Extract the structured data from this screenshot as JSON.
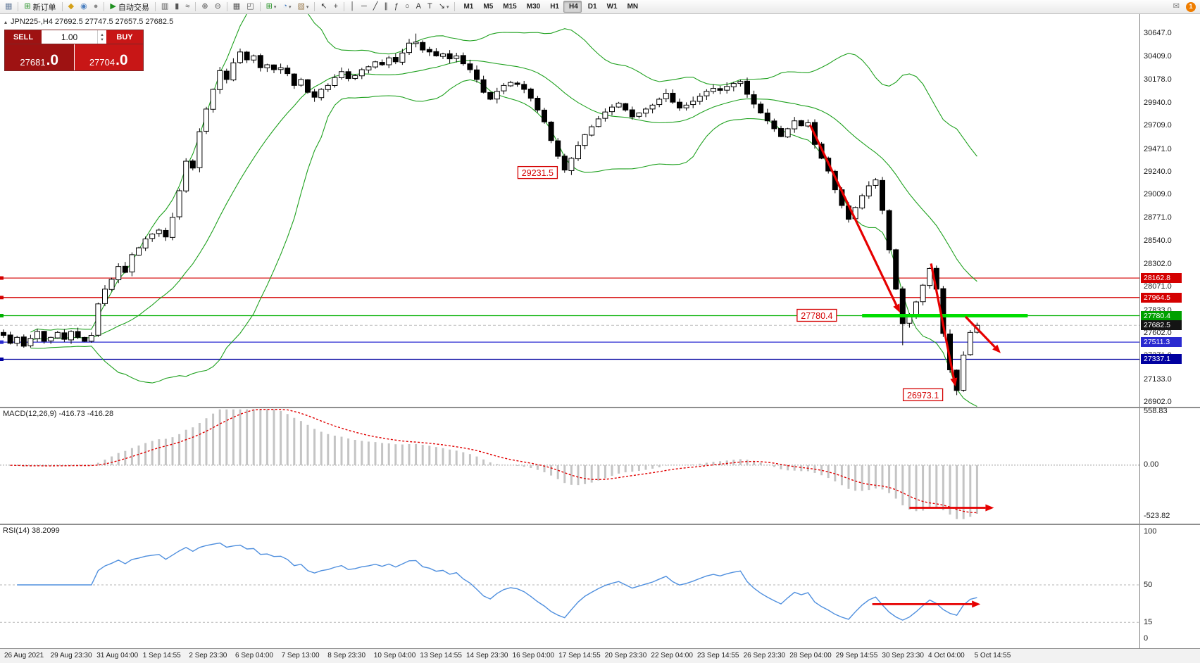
{
  "toolbar": {
    "groups": [
      {
        "items": [
          {
            "name": "chart-window-icon",
            "glyph": "▦",
            "color": "#6a7f9e"
          }
        ]
      },
      {
        "items": [
          {
            "name": "new-order-button",
            "glyph": "⊞",
            "color": "#1e8f1e",
            "label": "新订单"
          }
        ]
      },
      {
        "items": [
          {
            "name": "history-center-icon",
            "glyph": "◆",
            "color": "#d4a017"
          },
          {
            "name": "global-view-icon",
            "glyph": "◉",
            "color": "#4a7fc0"
          },
          {
            "name": "news-icon",
            "glyph": "●",
            "color": "#8a8a8a"
          }
        ]
      },
      {
        "items": [
          {
            "name": "autotrading-button",
            "glyph": "▶",
            "color": "#1e8f1e",
            "label": "自动交易"
          }
        ]
      },
      {
        "items": [
          {
            "name": "bar-chart-type-icon",
            "glyph": "▥",
            "color": "#555555"
          },
          {
            "name": "candlestick-chart-type-icon",
            "glyph": "▮",
            "color": "#555555"
          },
          {
            "name": "line-chart-type-icon",
            "glyph": "≈",
            "color": "#555555"
          }
        ]
      },
      {
        "items": [
          {
            "name": "zoom-in-icon",
            "glyph": "⊕",
            "color": "#555555"
          },
          {
            "name": "zoom-out-icon",
            "glyph": "⊖",
            "color": "#555555"
          }
        ]
      },
      {
        "items": [
          {
            "name": "tile-windows-icon",
            "glyph": "▦",
            "color": "#555555"
          },
          {
            "name": "auto-arrange-icon",
            "glyph": "◰",
            "color": "#555555"
          }
        ]
      },
      {
        "items": [
          {
            "name": "indicators-button",
            "glyph": "⊞",
            "color": "#1e8f1e",
            "dropdown": true
          },
          {
            "name": "periods-button",
            "glyph": "◔",
            "color": "#4a7fc0",
            "dropdown": true
          },
          {
            "name": "templates-button",
            "glyph": "▧",
            "color": "#9a7b4f",
            "dropdown": true
          }
        ]
      },
      {
        "items": [
          {
            "name": "cursor-icon",
            "glyph": "↖",
            "color": "#333333"
          },
          {
            "name": "crosshair-icon",
            "glyph": "+",
            "color": "#333333"
          }
        ]
      },
      {
        "items": [
          {
            "name": "vertical-line-icon",
            "glyph": "│",
            "color": "#333333"
          },
          {
            "name": "horizontal-line-icon",
            "glyph": "─",
            "color": "#333333"
          },
          {
            "name": "trendline-icon",
            "glyph": "╱",
            "color": "#333333"
          },
          {
            "name": "equidistant-channel-icon",
            "glyph": "∥",
            "color": "#333333"
          },
          {
            "name": "fibonacci-icon",
            "glyph": "ƒ",
            "color": "#333333"
          },
          {
            "name": "shapes-icon",
            "glyph": "○",
            "color": "#333333"
          },
          {
            "name": "text-icon",
            "glyph": "A",
            "color": "#333333"
          },
          {
            "name": "label-icon",
            "glyph": "T",
            "color": "#333333"
          },
          {
            "name": "arrows-tool-icon",
            "glyph": "↘",
            "color": "#333333",
            "dropdown": true
          }
        ]
      },
      {
        "items": [
          {
            "name": "timeframe-m1-button",
            "label": "M1",
            "cls": "tf"
          },
          {
            "name": "timeframe-m5-button",
            "label": "M5",
            "cls": "tf"
          },
          {
            "name": "timeframe-m15-button",
            "label": "M15",
            "cls": "tf"
          },
          {
            "name": "timeframe-m30-button",
            "label": "M30",
            "cls": "tf"
          },
          {
            "name": "timeframe-h1-button",
            "label": "H1",
            "cls": "tf"
          },
          {
            "name": "timeframe-h4-button",
            "label": "H4",
            "cls": "tf",
            "active": true
          },
          {
            "name": "timeframe-d1-button",
            "label": "D1",
            "cls": "tf"
          },
          {
            "name": "timeframe-w1-button",
            "label": "W1",
            "cls": "tf"
          },
          {
            "name": "timeframe-mn-button",
            "label": "MN",
            "cls": "tf"
          }
        ]
      }
    ],
    "right": [
      {
        "name": "messages-icon",
        "glyph": "✉",
        "color": "#777777"
      },
      {
        "name": "notifications-badge",
        "label": "1",
        "badge": true
      }
    ]
  },
  "symbol_header": {
    "icon": "▴",
    "text": "JPN225-,H4  27692.5 27747.5 27657.5 27682.5"
  },
  "trade_panel": {
    "sell_label": "SELL",
    "buy_label": "BUY",
    "volume": "1.00",
    "sell_price_main": "27681",
    "sell_price_frac": ".0",
    "buy_price_main": "27704",
    "buy_price_frac": ".0",
    "spin_up": "▴",
    "spin_down": "▾"
  },
  "chart_data": {
    "type": "candlestick",
    "symbol": "JPN225-",
    "timeframe": "H4",
    "title_ohlc": {
      "open": 27692.5,
      "high": 27747.5,
      "low": 27657.5,
      "close": 27682.5
    },
    "seed": 42,
    "closes": [
      27580,
      27500,
      27560,
      27470,
      27550,
      27620,
      27520,
      27560,
      27610,
      27540,
      27620,
      27560,
      27520,
      27580,
      27900,
      28050,
      28150,
      28280,
      28220,
      28400,
      28470,
      28560,
      28610,
      28650,
      28580,
      28780,
      29050,
      29350,
      29280,
      29650,
      29880,
      30080,
      30270,
      30180,
      30350,
      30460,
      30380,
      30420,
      30300,
      30330,
      30280,
      30300,
      30240,
      30120,
      30180,
      30050,
      30000,
      30080,
      30120,
      30200,
      30260,
      30190,
      30220,
      30280,
      30310,
      30360,
      30330,
      30400,
      30360,
      30450,
      30550,
      30560,
      30480,
      30460,
      30420,
      30440,
      30390,
      30420,
      30340,
      30280,
      30180,
      30050,
      29980,
      30060,
      30120,
      30150,
      30130,
      30080,
      29990,
      29870,
      29750,
      29560,
      29400,
      29260,
      29380,
      29510,
      29620,
      29700,
      29780,
      29850,
      29900,
      29940,
      29870,
      29800,
      29840,
      29880,
      29920,
      29980,
      30040,
      29950,
      29890,
      29920,
      29960,
      30010,
      30060,
      30090,
      30070,
      30110,
      30140,
      30160,
      30030,
      29930,
      29840,
      29760,
      29680,
      29600,
      29680,
      29760,
      29710,
      29740,
      29520,
      29380,
      29250,
      29060,
      28900,
      28760,
      28880,
      29000,
      29100,
      29160,
      28850,
      28450,
      28050,
      27700,
      27780,
      27920,
      28090,
      28260,
      28050,
      27600,
      27230,
      27020,
      27380,
      27610,
      27682.5
    ],
    "wick_overrides": {
      "61": {
        "high": 30647
      },
      "83": {
        "low": 29231.5
      },
      "133": {
        "low": 27480
      },
      "141": {
        "low": 26973.1
      }
    },
    "price_axis": {
      "min": 26840,
      "max": 30845,
      "labels": [
        30647.0,
        30409.0,
        30178.0,
        29940.0,
        29709.0,
        29471.0,
        29240.0,
        29009.0,
        28771.0,
        28540.0,
        28302.0,
        28071.0,
        27833.0,
        27602.0,
        27371.0,
        27133.0,
        26902.0
      ]
    },
    "hlines": [
      {
        "price": 28162.8,
        "color": "#d40000",
        "tag": "28162.8",
        "tag_bg": "#d40000"
      },
      {
        "price": 27964.5,
        "color": "#d40000",
        "tag": "27964.5",
        "tag_bg": "#d40000"
      },
      {
        "price": 27780.4,
        "color": "#00b000",
        "tag": "27780.4",
        "tag_bg": "#00a000"
      },
      {
        "price": 27511.3,
        "color": "#2a2ad0",
        "tag": "27511.3",
        "tag_bg": "#2a2ad0"
      },
      {
        "price": 27337.1,
        "color": "#0000a0",
        "tag": "27337.1",
        "tag_bg": "#0000a0"
      }
    ],
    "current_price": {
      "value": 27682.5,
      "tag": "27682.5",
      "tag_bg": "#141414"
    },
    "thick_line": {
      "price": 27780.4,
      "from_bar": 127,
      "to_bar": 151.5,
      "color": "#00dd00"
    },
    "price_labels": [
      {
        "text": "29231.5",
        "bar": 79,
        "price": 29231.5
      },
      {
        "text": "27780.4",
        "bar": 120.3,
        "price": 27780.4
      },
      {
        "text": "26973.1",
        "bar": 136,
        "price": 26973.1
      }
    ],
    "arrows": [
      {
        "from": [
          119.3,
          29720
        ],
        "to": [
          132.6,
          27810
        ]
      },
      {
        "from": [
          137.2,
          28310
        ],
        "to": [
          140.8,
          27060
        ]
      },
      {
        "from": [
          142.3,
          27770
        ],
        "to": [
          147.5,
          27400
        ]
      }
    ],
    "bollinger": {
      "period": 20,
      "deviation": 2,
      "color": "#1fa11f"
    },
    "macd": {
      "label": "MACD(12,26,9) -416.73 -416.28",
      "axis_labels": [
        {
          "v": 558.83,
          "t": "558.83"
        },
        {
          "v": 0,
          "t": "0.00"
        },
        {
          "v": -523.82,
          "t": "-523.82"
        }
      ],
      "hist_color": "#c4c4c4",
      "signal_color": "#e00000",
      "arrow": {
        "from_bar": 134,
        "to_bar": 146.5,
        "value": -440
      }
    },
    "rsi": {
      "label": "RSI(14) 38.2099",
      "period": 14,
      "axis_labels": [
        {
          "v": 100,
          "t": "100"
        },
        {
          "v": 50,
          "t": "50"
        },
        {
          "v": 15,
          "t": "15"
        },
        {
          "v": 0,
          "t": "0"
        }
      ],
      "levels": [
        50,
        15
      ],
      "color": "#4f8fde",
      "arrow": {
        "from_bar": 128.5,
        "to_bar": 144.5,
        "value": 32
      }
    },
    "time_axis": [
      "26 Aug 2021",
      "29 Aug 23:30",
      "31 Aug 04:00",
      "1 Sep 14:55",
      "2 Sep 23:30",
      "6 Sep 04:00",
      "7 Sep 13:00",
      "8 Sep 23:30",
      "10 Sep 04:00",
      "13 Sep 14:55",
      "14 Sep 23:30",
      "16 Sep 04:00",
      "17 Sep 14:55",
      "20 Sep 23:30",
      "22 Sep 04:00",
      "23 Sep 14:55",
      "26 Sep 23:30",
      "28 Sep 04:00",
      "29 Sep 14:55",
      "30 Sep 23:30",
      "4 Oct 04:00",
      "5 Oct 14:55"
    ]
  }
}
